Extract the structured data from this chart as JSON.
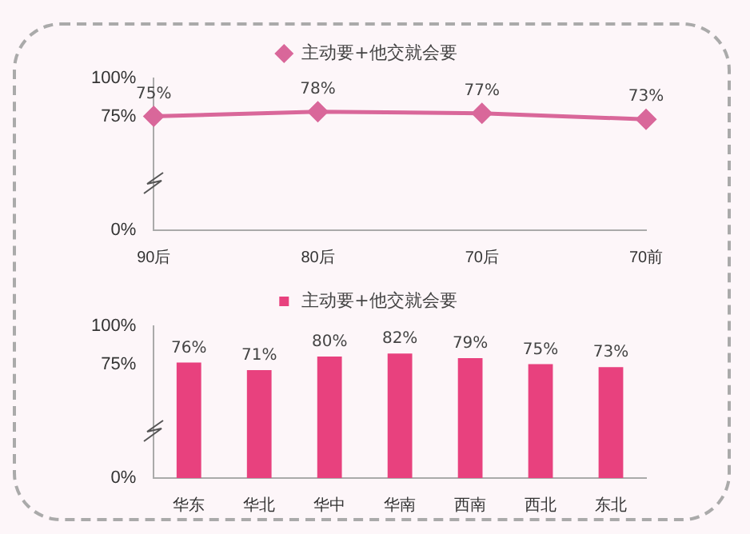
{
  "chart_data": [
    {
      "type": "line",
      "categories": [
        "90后",
        "80后",
        "70后",
        "70前"
      ],
      "series": [
        {
          "name": "主动要+他交就会要",
          "color": "#d9679a",
          "values": [
            75,
            78,
            77,
            73
          ],
          "value_labels": [
            "75%",
            "78%",
            "77%",
            "73%"
          ]
        }
      ],
      "ylim": [
        0,
        100
      ],
      "yticks": [
        {
          "value": 0,
          "label": "0%"
        },
        {
          "value": 75,
          "label": "75%"
        },
        {
          "value": 100,
          "label": "100%"
        }
      ],
      "legend": "top",
      "marker": "diamond",
      "grid": false
    },
    {
      "type": "bar",
      "categories": [
        "华东",
        "华北",
        "华中",
        "华南",
        "西南",
        "西北",
        "东北"
      ],
      "series": [
        {
          "name": "主动要+他交就会要",
          "color": "#e8417e",
          "values": [
            76,
            71,
            80,
            82,
            79,
            75,
            73
          ],
          "value_labels": [
            "76%",
            "71%",
            "80%",
            "82%",
            "79%",
            "75%",
            "73%"
          ]
        }
      ],
      "ylim": [
        0,
        100
      ],
      "yticks": [
        {
          "value": 0,
          "label": "0%"
        },
        {
          "value": 75,
          "label": "75%"
        },
        {
          "value": 100,
          "label": "100%"
        }
      ],
      "legend": "top",
      "grid": false
    }
  ]
}
